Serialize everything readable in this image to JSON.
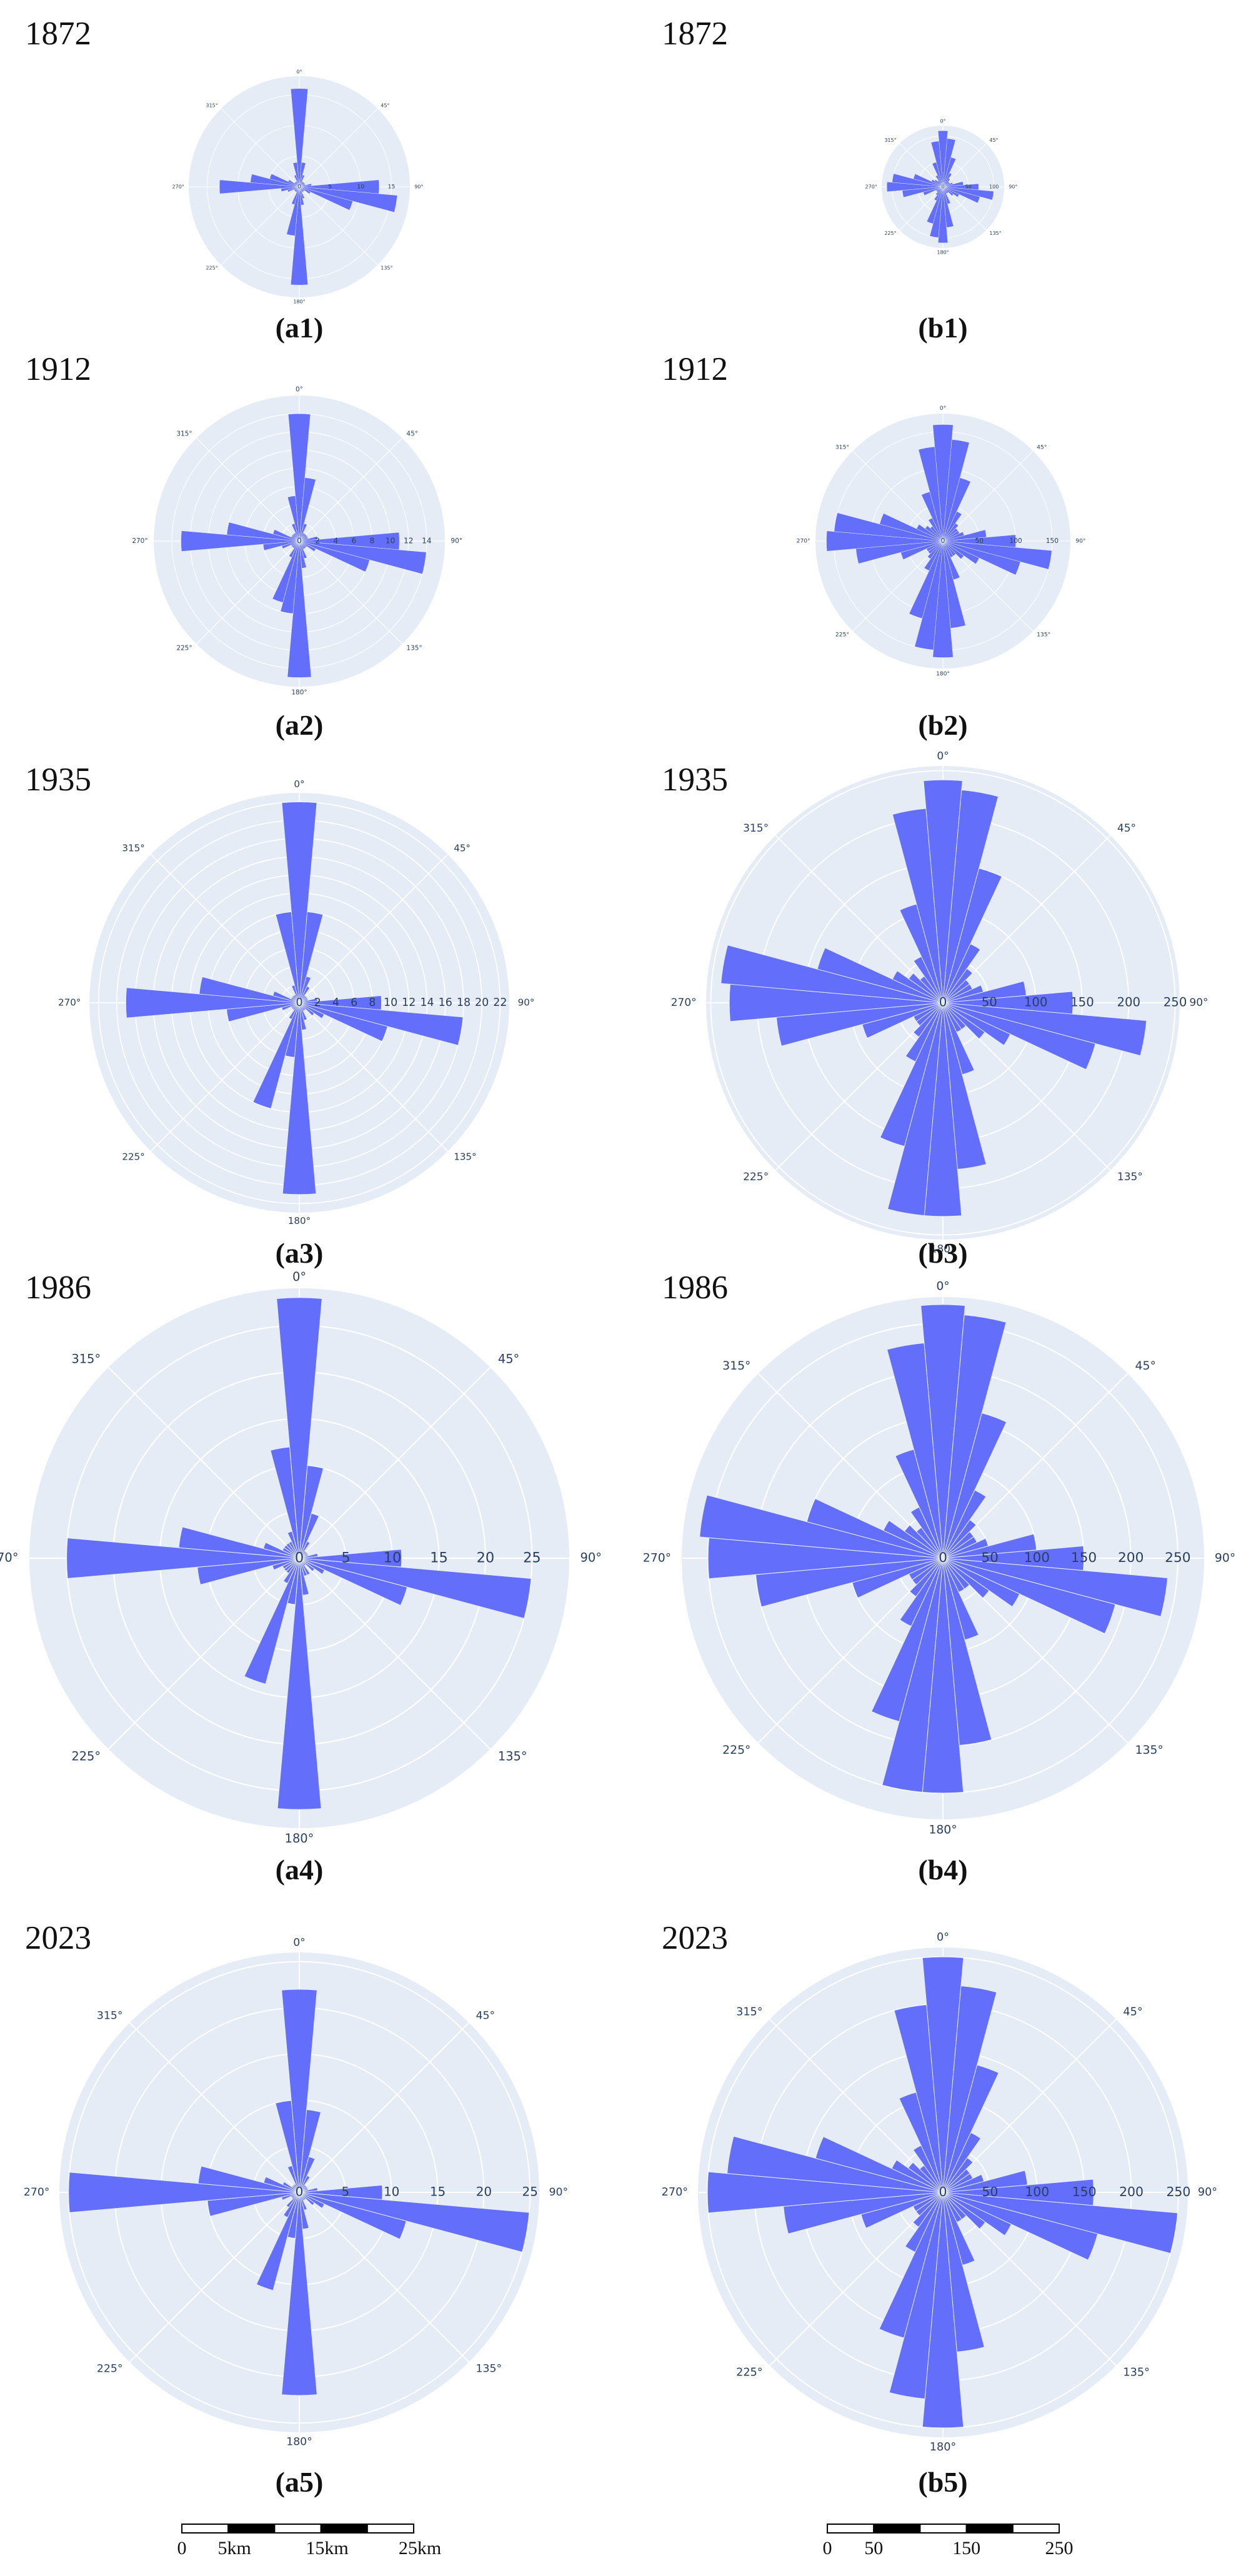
{
  "chart_data": [
    {
      "type": "barpolar",
      "title": "1872",
      "caption": "(a1)",
      "color": "#636efa",
      "grid": true,
      "rlim": [
        0,
        18
      ],
      "rticks": [
        0,
        5,
        10,
        15
      ],
      "theta": [
        0,
        10,
        20,
        30,
        40,
        50,
        60,
        70,
        80,
        90,
        100,
        110,
        120,
        130,
        140,
        150,
        160,
        170,
        180,
        190,
        200,
        210,
        220,
        230,
        240,
        250,
        260,
        270,
        280,
        290,
        300,
        310,
        320,
        330,
        340,
        350
      ],
      "values": [
        16,
        4,
        2,
        1,
        1,
        1,
        1,
        1,
        2,
        13,
        16,
        9,
        2,
        1,
        1,
        1,
        2,
        3,
        16,
        8,
        3,
        1,
        1,
        1,
        1,
        2,
        3,
        13,
        8,
        5,
        2,
        1,
        1,
        1,
        2,
        4
      ],
      "thetaticks": [
        {
          "value": 0,
          "label": "0°"
        },
        {
          "value": 45,
          "label": "45°"
        },
        {
          "value": 90,
          "label": "90°"
        },
        {
          "value": 135,
          "label": "135°"
        },
        {
          "value": 180,
          "label": "180°"
        },
        {
          "value": 225,
          "label": "225°"
        },
        {
          "value": 270,
          "label": "270°"
        },
        {
          "value": 315,
          "label": "315°"
        }
      ]
    },
    {
      "type": "barpolar",
      "title": "1872",
      "caption": "(b1)",
      "color": "#636efa",
      "grid": true,
      "rlim": [
        0,
        120
      ],
      "rticks": [
        0,
        50,
        100
      ],
      "theta": [
        0,
        10,
        20,
        30,
        40,
        50,
        60,
        70,
        80,
        90,
        100,
        110,
        120,
        130,
        140,
        150,
        160,
        170,
        180,
        190,
        200,
        210,
        220,
        230,
        240,
        250,
        260,
        270,
        280,
        290,
        300,
        310,
        320,
        330,
        340,
        350
      ],
      "values": [
        110,
        95,
        60,
        30,
        20,
        15,
        15,
        20,
        40,
        70,
        100,
        75,
        35,
        25,
        15,
        15,
        35,
        80,
        110,
        100,
        75,
        30,
        20,
        15,
        15,
        40,
        80,
        110,
        100,
        60,
        25,
        20,
        15,
        25,
        50,
        90
      ],
      "thetaticks": [
        {
          "value": 0,
          "label": "0°"
        },
        {
          "value": 45,
          "label": "45°"
        },
        {
          "value": 90,
          "label": "90°"
        },
        {
          "value": 135,
          "label": "135°"
        },
        {
          "value": 180,
          "label": "180°"
        },
        {
          "value": 225,
          "label": "225°"
        },
        {
          "value": 270,
          "label": "270°"
        },
        {
          "value": 315,
          "label": "315°"
        }
      ]
    },
    {
      "type": "barpolar",
      "title": "1912",
      "caption": "(a2)",
      "color": "#636efa",
      "grid": true,
      "rlim": [
        0,
        16
      ],
      "rticks": [
        0,
        2,
        4,
        6,
        8,
        10,
        12,
        14
      ],
      "theta": [
        0,
        10,
        20,
        30,
        40,
        50,
        60,
        70,
        80,
        90,
        100,
        110,
        120,
        130,
        140,
        150,
        160,
        170,
        180,
        190,
        200,
        210,
        220,
        230,
        240,
        250,
        260,
        270,
        280,
        290,
        300,
        310,
        320,
        330,
        340,
        350
      ],
      "values": [
        14,
        7,
        2,
        1,
        1,
        1,
        1,
        1,
        2,
        11,
        14,
        8,
        2,
        1,
        1,
        1,
        2,
        3,
        15,
        8,
        7,
        2,
        1,
        1,
        1,
        2,
        4,
        13,
        8,
        3,
        1,
        1,
        1,
        1,
        2,
        5
      ],
      "thetaticks": [
        {
          "value": 0,
          "label": "0°"
        },
        {
          "value": 45,
          "label": "45°"
        },
        {
          "value": 90,
          "label": "90°"
        },
        {
          "value": 135,
          "label": "135°"
        },
        {
          "value": 180,
          "label": "180°"
        },
        {
          "value": 225,
          "label": "225°"
        },
        {
          "value": 270,
          "label": "270°"
        },
        {
          "value": 315,
          "label": "315°"
        }
      ]
    },
    {
      "type": "barpolar",
      "title": "1912",
      "caption": "(b2)",
      "color": "#636efa",
      "grid": true,
      "rlim": [
        0,
        175
      ],
      "rticks": [
        0,
        50,
        100,
        150
      ],
      "theta": [
        0,
        10,
        20,
        30,
        40,
        50,
        60,
        70,
        80,
        90,
        100,
        110,
        120,
        130,
        140,
        150,
        160,
        170,
        180,
        190,
        200,
        210,
        220,
        230,
        240,
        250,
        260,
        270,
        280,
        290,
        300,
        310,
        320,
        330,
        340,
        350
      ],
      "values": [
        160,
        140,
        90,
        45,
        30,
        25,
        25,
        30,
        60,
        100,
        150,
        110,
        55,
        35,
        25,
        25,
        55,
        120,
        160,
        150,
        110,
        45,
        30,
        25,
        25,
        60,
        120,
        160,
        150,
        90,
        40,
        30,
        25,
        35,
        70,
        130
      ],
      "thetaticks": [
        {
          "value": 0,
          "label": "0°"
        },
        {
          "value": 45,
          "label": "45°"
        },
        {
          "value": 90,
          "label": "90°"
        },
        {
          "value": 135,
          "label": "135°"
        },
        {
          "value": 180,
          "label": "180°"
        },
        {
          "value": 225,
          "label": "225°"
        },
        {
          "value": 270,
          "label": "270°"
        },
        {
          "value": 315,
          "label": "315°"
        }
      ]
    },
    {
      "type": "barpolar",
      "title": "1935",
      "caption": "(a3)",
      "color": "#636efa",
      "grid": true,
      "rlim": [
        0,
        23
      ],
      "rticks": [
        0,
        2,
        4,
        6,
        8,
        10,
        12,
        14,
        16,
        18,
        20,
        22
      ],
      "theta": [
        0,
        10,
        20,
        30,
        40,
        50,
        60,
        70,
        80,
        90,
        100,
        110,
        120,
        130,
        140,
        150,
        160,
        170,
        180,
        190,
        200,
        210,
        220,
        230,
        240,
        250,
        260,
        270,
        280,
        290,
        300,
        310,
        320,
        330,
        340,
        350
      ],
      "values": [
        22,
        10,
        3,
        2,
        1,
        1,
        1,
        1,
        2,
        9,
        18,
        10,
        3,
        2,
        1,
        1,
        2,
        3,
        21,
        6,
        12,
        2,
        1,
        1,
        1,
        2,
        8,
        19,
        11,
        3,
        1,
        1,
        1,
        1,
        2,
        10
      ],
      "thetaticks": [
        {
          "value": 0,
          "label": "0°"
        },
        {
          "value": 45,
          "label": "45°"
        },
        {
          "value": 90,
          "label": "90°"
        },
        {
          "value": 135,
          "label": "135°"
        },
        {
          "value": 180,
          "label": "180°"
        },
        {
          "value": 225,
          "label": "225°"
        },
        {
          "value": 270,
          "label": "270°"
        },
        {
          "value": 315,
          "label": "315°"
        }
      ]
    },
    {
      "type": "barpolar",
      "title": "1935",
      "caption": "(b3)",
      "color": "#636efa",
      "grid": true,
      "rlim": [
        0,
        255
      ],
      "rticks": [
        0,
        50,
        100,
        150,
        200,
        250
      ],
      "theta": [
        0,
        10,
        20,
        30,
        40,
        50,
        60,
        70,
        80,
        90,
        100,
        110,
        120,
        130,
        140,
        150,
        160,
        170,
        180,
        190,
        200,
        210,
        220,
        230,
        240,
        250,
        260,
        270,
        280,
        290,
        300,
        310,
        320,
        330,
        340,
        350
      ],
      "values": [
        240,
        230,
        150,
        70,
        45,
        35,
        35,
        45,
        90,
        140,
        220,
        170,
        80,
        55,
        35,
        35,
        80,
        180,
        230,
        230,
        160,
        70,
        45,
        35,
        35,
        90,
        180,
        230,
        240,
        140,
        60,
        45,
        35,
        55,
        110,
        210
      ],
      "thetaticks": [
        {
          "value": 0,
          "label": "0°"
        },
        {
          "value": 45,
          "label": "45°"
        },
        {
          "value": 90,
          "label": "90°"
        },
        {
          "value": 135,
          "label": "135°"
        },
        {
          "value": 180,
          "label": "180°"
        },
        {
          "value": 225,
          "label": "225°"
        },
        {
          "value": 270,
          "label": "270°"
        },
        {
          "value": 315,
          "label": "315°"
        }
      ]
    },
    {
      "type": "barpolar",
      "title": "1986",
      "caption": "(a4)",
      "color": "#636efa",
      "grid": true,
      "rlim": [
        0,
        29
      ],
      "rticks": [
        0,
        5,
        10,
        15,
        20,
        25
      ],
      "theta": [
        0,
        10,
        20,
        30,
        40,
        50,
        60,
        70,
        80,
        90,
        100,
        110,
        120,
        130,
        140,
        150,
        160,
        170,
        180,
        190,
        200,
        210,
        220,
        230,
        240,
        250,
        260,
        270,
        280,
        290,
        300,
        310,
        320,
        330,
        340,
        350
      ],
      "values": [
        28,
        10,
        5,
        2,
        1,
        1,
        1,
        1,
        2,
        11,
        25,
        12,
        3,
        2,
        1,
        2,
        2,
        4,
        27,
        5,
        14,
        3,
        2,
        2,
        2,
        3,
        11,
        25,
        13,
        4,
        2,
        2,
        2,
        2,
        3,
        12
      ],
      "thetaticks": [
        {
          "value": 0,
          "label": "0°"
        },
        {
          "value": 45,
          "label": "45°"
        },
        {
          "value": 90,
          "label": "90°"
        },
        {
          "value": 135,
          "label": "135°"
        },
        {
          "value": 180,
          "label": "180°"
        },
        {
          "value": 225,
          "label": "225°"
        },
        {
          "value": 270,
          "label": "270°"
        },
        {
          "value": 315,
          "label": "315°"
        }
      ]
    },
    {
      "type": "barpolar",
      "title": "1986",
      "caption": "(b4)",
      "color": "#636efa",
      "grid": true,
      "rlim": [
        0,
        278
      ],
      "rticks": [
        0,
        50,
        100,
        150,
        200,
        250
      ],
      "theta": [
        0,
        10,
        20,
        30,
        40,
        50,
        60,
        70,
        80,
        90,
        100,
        110,
        120,
        130,
        140,
        150,
        160,
        170,
        180,
        190,
        200,
        210,
        220,
        230,
        240,
        250,
        260,
        270,
        280,
        290,
        300,
        310,
        320,
        330,
        340,
        350
      ],
      "values": [
        270,
        260,
        160,
        80,
        50,
        40,
        40,
        50,
        100,
        150,
        240,
        190,
        90,
        60,
        40,
        40,
        90,
        200,
        250,
        250,
        180,
        80,
        50,
        40,
        40,
        100,
        200,
        250,
        260,
        150,
        70,
        50,
        40,
        60,
        120,
        230
      ],
      "thetaticks": [
        {
          "value": 0,
          "label": "0°"
        },
        {
          "value": 45,
          "label": "45°"
        },
        {
          "value": 90,
          "label": "90°"
        },
        {
          "value": 135,
          "label": "135°"
        },
        {
          "value": 180,
          "label": "180°"
        },
        {
          "value": 225,
          "label": "225°"
        },
        {
          "value": 270,
          "label": "270°"
        },
        {
          "value": 315,
          "label": "315°"
        }
      ]
    },
    {
      "type": "barpolar",
      "title": "2023",
      "caption": "(a5)",
      "color": "#636efa",
      "grid": true,
      "rlim": [
        0,
        26
      ],
      "rticks": [
        0,
        5,
        10,
        15,
        20,
        25
      ],
      "theta": [
        0,
        10,
        20,
        30,
        40,
        50,
        60,
        70,
        80,
        90,
        100,
        110,
        120,
        130,
        140,
        150,
        160,
        170,
        180,
        190,
        200,
        210,
        220,
        230,
        240,
        250,
        260,
        270,
        280,
        290,
        300,
        310,
        320,
        330,
        340,
        350
      ],
      "values": [
        22,
        9,
        4,
        2,
        1,
        1,
        1,
        1,
        2,
        9,
        25,
        12,
        3,
        2,
        1,
        1,
        2,
        4,
        22,
        5,
        11,
        3,
        2,
        1,
        1,
        2,
        10,
        25,
        11,
        4,
        2,
        1,
        1,
        1,
        3,
        10
      ],
      "thetaticks": [
        {
          "value": 0,
          "label": "0°"
        },
        {
          "value": 45,
          "label": "45°"
        },
        {
          "value": 90,
          "label": "90°"
        },
        {
          "value": 135,
          "label": "135°"
        },
        {
          "value": 180,
          "label": "180°"
        },
        {
          "value": 225,
          "label": "225°"
        },
        {
          "value": 270,
          "label": "270°"
        },
        {
          "value": 315,
          "label": "315°"
        }
      ]
    },
    {
      "type": "barpolar",
      "title": "2023",
      "caption": "(b5)",
      "color": "#636efa",
      "grid": true,
      "rlim": [
        0,
        260
      ],
      "rticks": [
        0,
        50,
        100,
        150,
        200,
        250
      ],
      "theta": [
        0,
        10,
        20,
        30,
        40,
        50,
        60,
        70,
        80,
        90,
        100,
        110,
        120,
        130,
        140,
        150,
        160,
        170,
        180,
        190,
        200,
        210,
        220,
        230,
        240,
        250,
        260,
        270,
        280,
        290,
        300,
        310,
        320,
        330,
        340,
        350
      ],
      "values": [
        250,
        220,
        140,
        70,
        45,
        35,
        35,
        45,
        90,
        160,
        250,
        170,
        80,
        55,
        35,
        35,
        80,
        170,
        250,
        220,
        160,
        70,
        45,
        35,
        35,
        90,
        170,
        250,
        230,
        140,
        60,
        45,
        35,
        55,
        110,
        200
      ],
      "thetaticks": [
        {
          "value": 0,
          "label": "0°"
        },
        {
          "value": 45,
          "label": "45°"
        },
        {
          "value": 90,
          "label": "90°"
        },
        {
          "value": 135,
          "label": "135°"
        },
        {
          "value": 180,
          "label": "180°"
        },
        {
          "value": 225,
          "label": "225°"
        },
        {
          "value": 270,
          "label": "270°"
        },
        {
          "value": 315,
          "label": "315°"
        }
      ]
    }
  ],
  "scale_bars": [
    {
      "labels": [
        "0",
        "5km",
        "15km",
        "25km"
      ]
    },
    {
      "labels": [
        "0",
        "50",
        "150",
        "250"
      ]
    }
  ]
}
